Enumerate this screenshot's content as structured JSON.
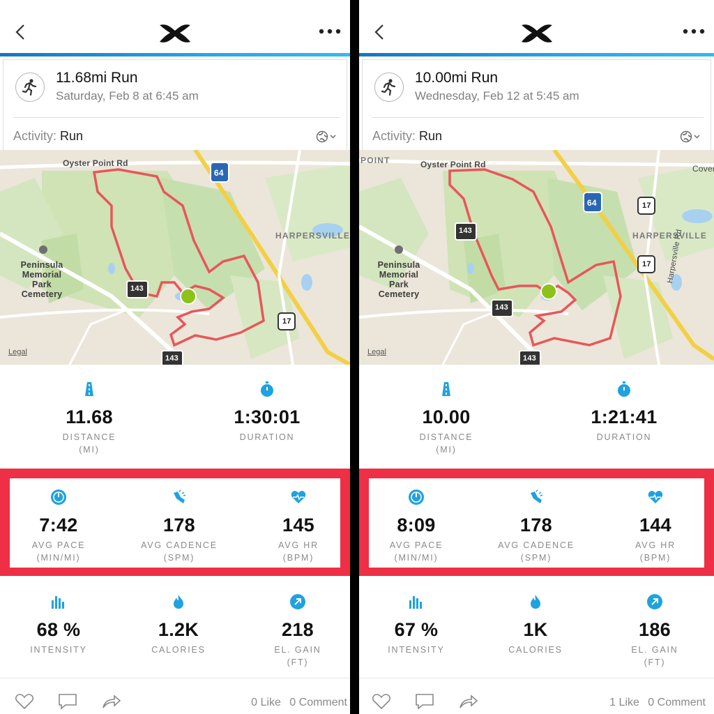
{
  "left": {
    "title": "11.68mi Run",
    "subtitle": "Saturday, Feb 8 at 6:45 am",
    "activity_label": "Activity:",
    "activity_value": "Run",
    "map": {
      "labels": {
        "road1": "Oyster Point Rd",
        "interstate": "64",
        "area": "HARPERSVILLE",
        "cem1": "Peninsula",
        "cem2": "Memorial",
        "cem3": "Park",
        "cem4": "Cemetery",
        "route143a": "143",
        "route143b": "143",
        "route17": "17",
        "legal": "Legal"
      }
    },
    "distance": {
      "value": "11.68",
      "label": "DISTANCE",
      "unit": "(MI)"
    },
    "duration": {
      "value": "1:30:01",
      "label": "DURATION"
    },
    "pace": {
      "value": "7:42",
      "label": "AVG PACE",
      "unit": "(MIN/MI)"
    },
    "cadence": {
      "value": "178",
      "label": "AVG CADENCE",
      "unit": "(SPM)"
    },
    "hr": {
      "value": "145",
      "label": "AVG HR",
      "unit": "(BPM)"
    },
    "intensity": {
      "value": "68 %",
      "label": "INTENSITY"
    },
    "calories": {
      "value": "1.2K",
      "label": "CALORIES"
    },
    "elgain": {
      "value": "218",
      "label": "EL. GAIN",
      "unit": "(FT)"
    },
    "likes": "0 Like",
    "comments": "0 Comment"
  },
  "right": {
    "title": "10.00mi Run",
    "subtitle": "Wednesday, Feb 12 at 5:45 am",
    "activity_label": "Activity:",
    "activity_value": "Run",
    "map": {
      "labels": {
        "point": "POINT",
        "road1": "Oyster Point Rd",
        "interstate": "64",
        "area": "HARPERSVILLE",
        "cem1": "Peninsula",
        "cem2": "Memorial",
        "cem3": "Park",
        "cem4": "Cemetery",
        "route143a": "143",
        "route143b": "143",
        "route143c": "143",
        "route17a": "17",
        "route17b": "17",
        "road2": "Harpersville Rd",
        "cover": "Cover",
        "legal": "Legal"
      }
    },
    "distance": {
      "value": "10.00",
      "label": "DISTANCE",
      "unit": "(MI)"
    },
    "duration": {
      "value": "1:21:41",
      "label": "DURATION"
    },
    "pace": {
      "value": "8:09",
      "label": "AVG PACE",
      "unit": "(MIN/MI)"
    },
    "cadence": {
      "value": "178",
      "label": "AVG CADENCE",
      "unit": "(SPM)"
    },
    "hr": {
      "value": "144",
      "label": "AVG HR",
      "unit": "(BPM)"
    },
    "intensity": {
      "value": "67 %",
      "label": "INTENSITY"
    },
    "calories": {
      "value": "1K",
      "label": "CALORIES"
    },
    "elgain": {
      "value": "186",
      "label": "EL. GAIN",
      "unit": "(FT)"
    },
    "likes": "1 Like",
    "comments": "0 Comment"
  },
  "colors": {
    "accent_blue": "#1fa2e0",
    "highlight_red": "#ee2f45",
    "route_red": "#e8565a",
    "start_green": "#8cc21a"
  },
  "icons": {
    "back": "chevron-left-icon",
    "logo": "under-armour-logo",
    "more": "more-dots-icon",
    "avatar": "runner-icon",
    "privacy": "globe-icon",
    "distance": "road-icon",
    "duration": "stopwatch-icon",
    "pace": "speedometer-icon",
    "cadence": "shoe-icon",
    "hr": "heart-icon",
    "intensity": "bars-icon",
    "calories": "flame-icon",
    "elgain": "arrow-up-right-icon",
    "like": "heart-outline-icon",
    "comment": "comment-icon",
    "share": "share-icon"
  }
}
